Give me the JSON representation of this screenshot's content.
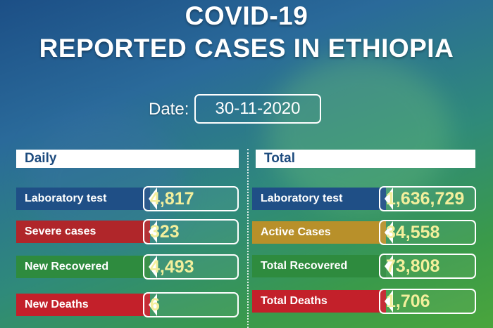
{
  "title_line1": "COVID-19",
  "title_line2": "REPORTED CASES IN ETHIOPIA",
  "date": {
    "label": "Date:",
    "value": "30-11-2020"
  },
  "daily": {
    "heading": "Daily",
    "rows": [
      {
        "label": "Laboratory test",
        "value": "4,817",
        "color": "#1f4f86"
      },
      {
        "label": "Severe cases",
        "value": "323",
        "color": "#b0262a"
      },
      {
        "label": "New Recovered",
        "value": "4,493",
        "color": "#2e8b3e"
      },
      {
        "label": "New Deaths",
        "value": "6",
        "color": "#c3202a"
      }
    ]
  },
  "total": {
    "heading": "Total",
    "rows": [
      {
        "label": "Laboratory test",
        "value": "1,636,729",
        "color": "#1f4f86"
      },
      {
        "label": "Active Cases",
        "value": "34,558",
        "color": "#b8902a"
      },
      {
        "label": "Total Recovered",
        "value": "73,808",
        "color": "#2e8b3e"
      },
      {
        "label": "Total Deaths",
        "value": "1,706",
        "color": "#c3202a"
      }
    ]
  }
}
